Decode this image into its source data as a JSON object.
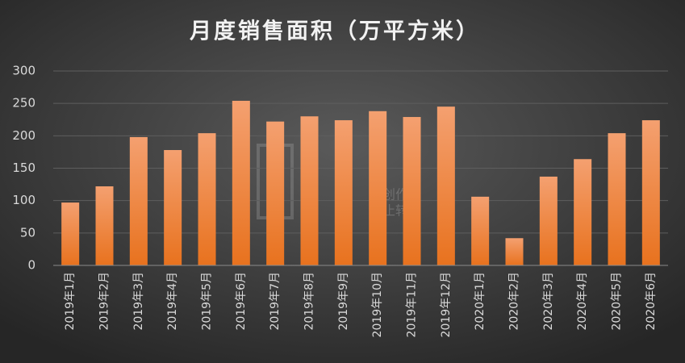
{
  "chart_data": {
    "type": "bar",
    "title": "月度销售面积（万平方米）",
    "categories": [
      "2019年1月",
      "2019年2月",
      "2019年3月",
      "2019年4月",
      "2019年5月",
      "2019年6月",
      "2019年7月",
      "2019年8月",
      "2019年9月",
      "2019年10月",
      "2019年11月",
      "2019年12月",
      "2020年1月",
      "2020年2月",
      "2020年3月",
      "2020年4月",
      "2020年5月",
      "2020年6月"
    ],
    "values": [
      97,
      122,
      198,
      178,
      204,
      254,
      222,
      230,
      224,
      238,
      229,
      245,
      106,
      42,
      137,
      164,
      204,
      224
    ],
    "color": "#f0803a",
    "ylim": [
      0,
      300
    ],
    "yticks": [
      0,
      50,
      100,
      150,
      200,
      250,
      300
    ],
    "grid": true,
    "watermark": [
      "源创作品",
      "禁止转载"
    ]
  }
}
